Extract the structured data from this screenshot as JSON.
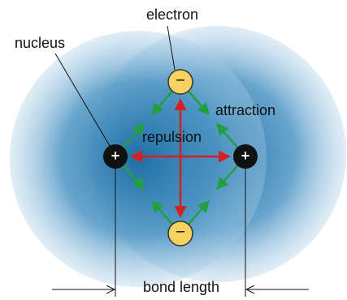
{
  "labels": {
    "electron": "electron",
    "nucleus": "nucleus",
    "attraction": "attraction",
    "repulsion": "repulsion",
    "bond_length": "bond length"
  },
  "nodes": [
    {
      "label": "+"
    },
    {
      "label": "+"
    },
    {
      "label": "−"
    },
    {
      "label": "−"
    }
  ]
}
